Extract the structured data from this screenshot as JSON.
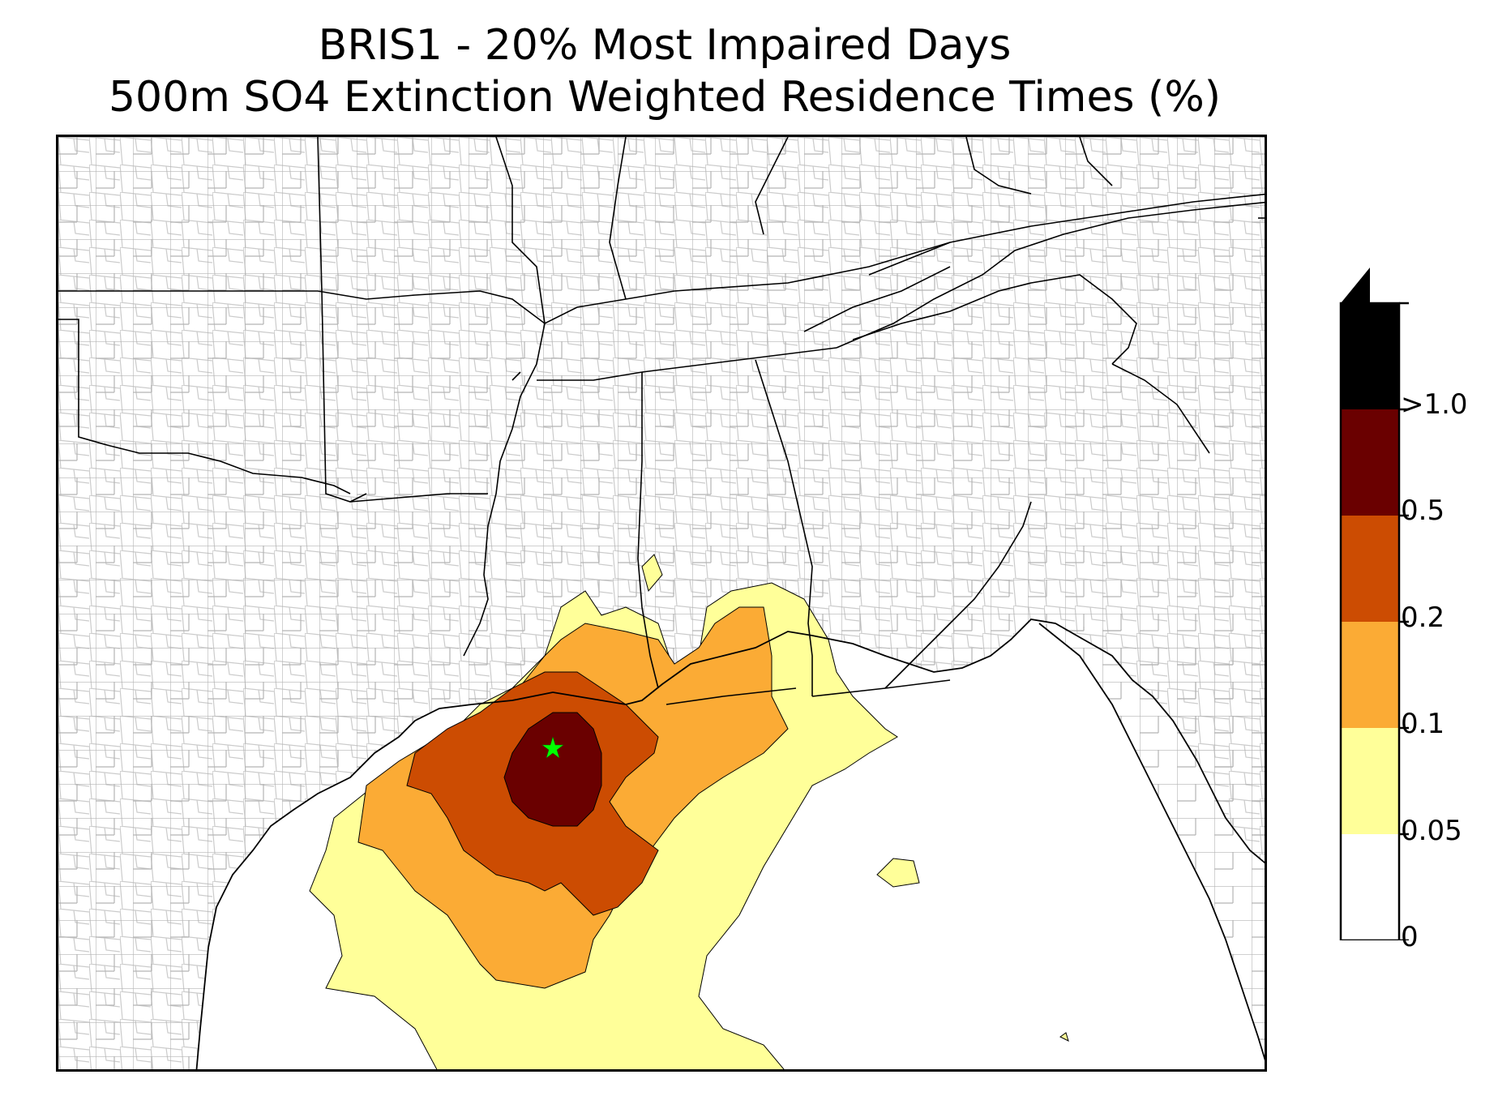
{
  "title": {
    "line1": "BRIS1 - 20% Most Impaired Days",
    "line2": "500m SO4 Extinction Weighted Residence Times (%)"
  },
  "map": {
    "region": "Southeastern United States and Gulf of Mexico",
    "receptor_marker": {
      "icon": "star-icon",
      "color": "#00ff00"
    },
    "state_border_color": "#000000",
    "county_border_color": "#a0a0a0"
  },
  "colorbar": {
    "extend": "max",
    "levels": [
      "0",
      "0.05",
      "0.1",
      "0.2",
      "0.5",
      ">1.0"
    ],
    "bins": [
      {
        "from": 0,
        "to": 0.05,
        "color": "#ffffff"
      },
      {
        "from": 0.05,
        "to": 0.1,
        "color": "#ffff99"
      },
      {
        "from": 0.1,
        "to": 0.2,
        "color": "#fbab35"
      },
      {
        "from": 0.2,
        "to": 0.5,
        "color": "#cc4c02"
      },
      {
        "from": 0.5,
        "to": 1.0,
        "color": "#6a0000"
      },
      {
        "from": 1.0,
        "to": null,
        "color": "#000000"
      }
    ]
  }
}
